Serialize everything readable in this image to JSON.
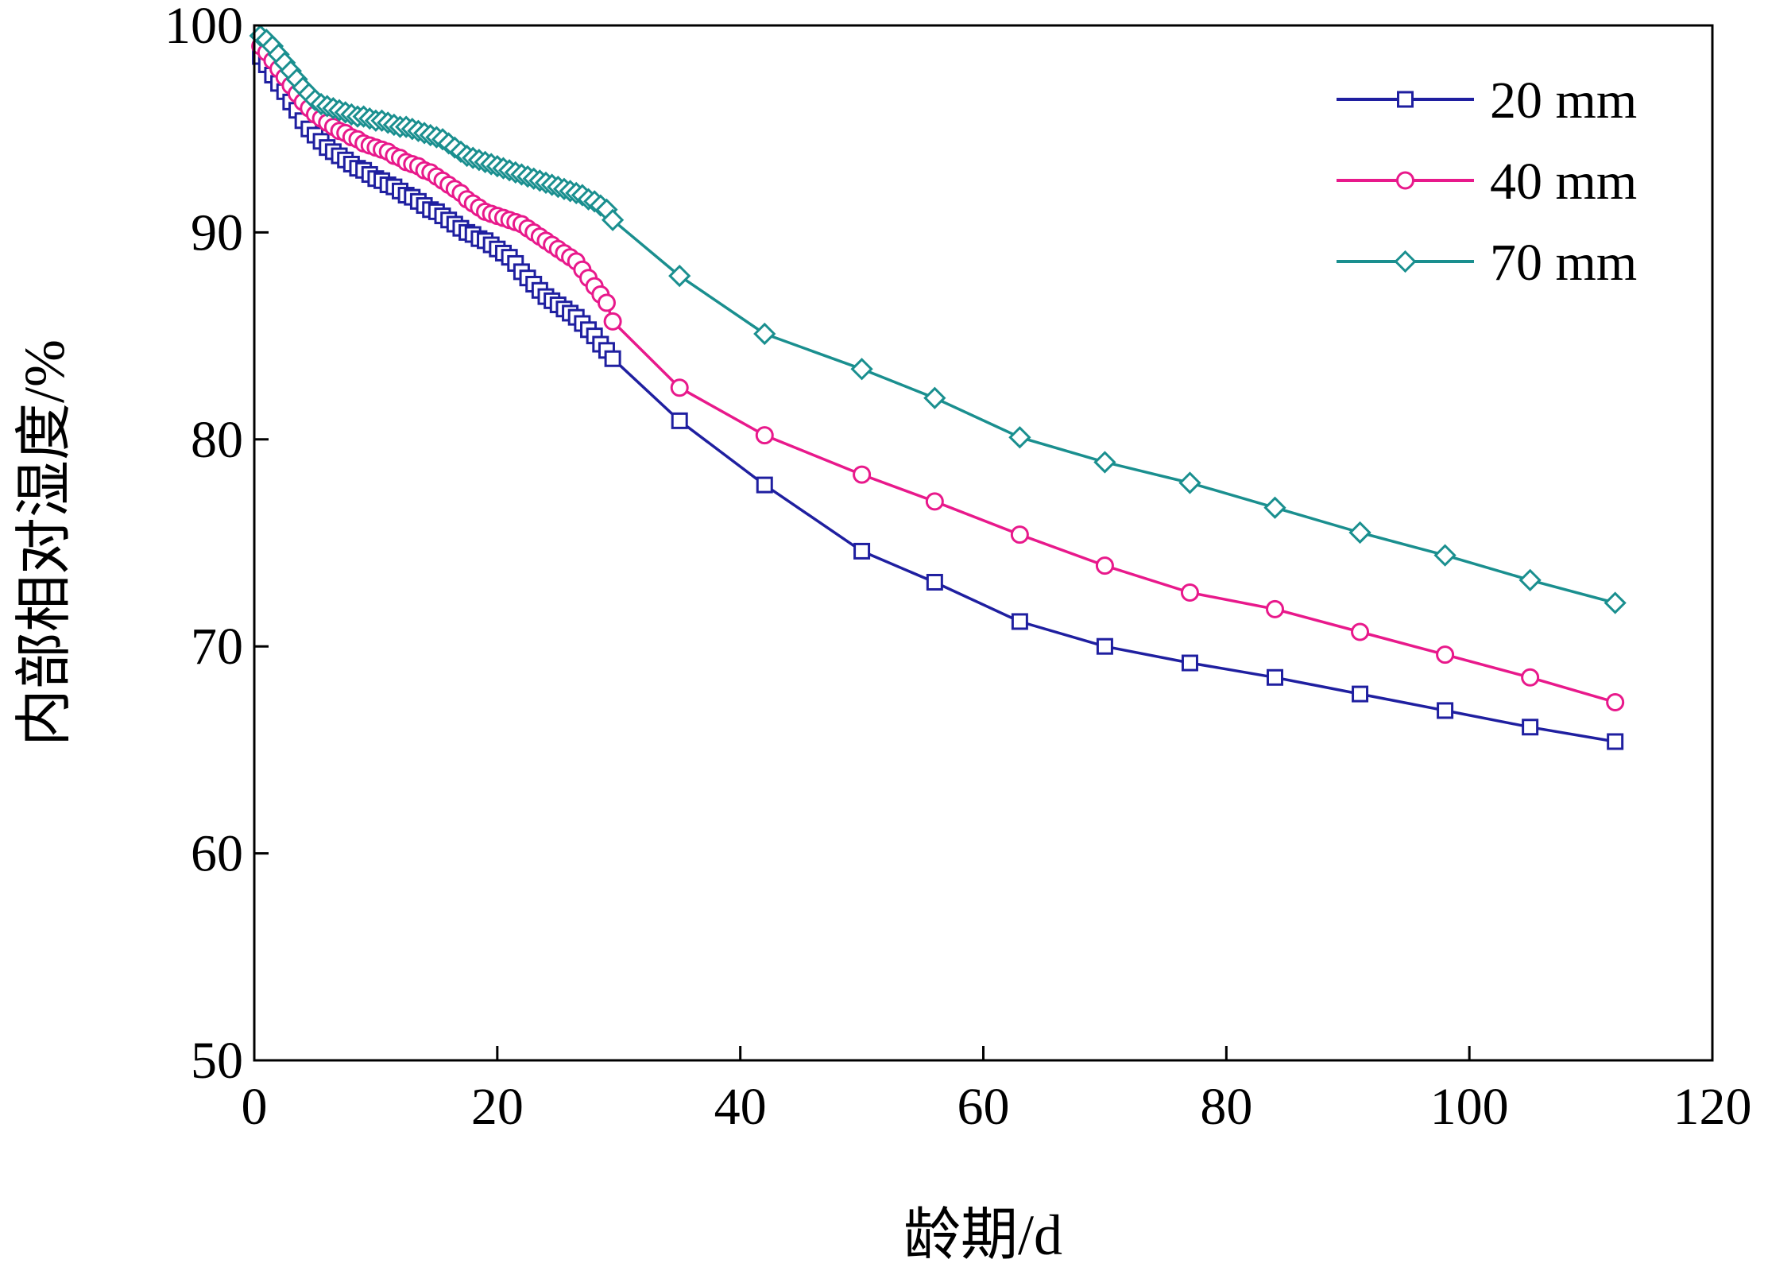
{
  "chart_data": {
    "type": "line",
    "xlabel": "龄期/d",
    "ylabel": "内部相对湿度/%",
    "xlim": [
      0,
      120
    ],
    "ylim": [
      50,
      100
    ],
    "xticks": [
      "0",
      "20",
      "40",
      "60",
      "80",
      "100",
      "120"
    ],
    "yticks": [
      "50",
      "60",
      "70",
      "80",
      "90",
      "100"
    ],
    "grid": false,
    "legend_position": "top-right",
    "series": [
      {
        "name": "20 mm",
        "color": "#1f1fa0",
        "marker": "square",
        "x": [
          0.5,
          1.0,
          1.5,
          2.0,
          2.5,
          3.0,
          3.5,
          4.0,
          4.5,
          5.0,
          5.5,
          6.0,
          6.5,
          7.0,
          7.5,
          8.0,
          8.5,
          9.0,
          9.5,
          10.0,
          10.5,
          11.0,
          11.5,
          12.0,
          12.5,
          13.0,
          13.5,
          14.0,
          14.5,
          15.0,
          15.5,
          16.0,
          16.5,
          17.0,
          17.5,
          18.0,
          18.5,
          19.0,
          19.5,
          20.0,
          20.5,
          21.0,
          21.5,
          22.0,
          22.5,
          23.0,
          23.5,
          24.0,
          24.5,
          25.0,
          25.5,
          26.0,
          26.5,
          27.0,
          27.5,
          28.0,
          28.5,
          29.0,
          29.5,
          35,
          42,
          50,
          56,
          63,
          70,
          77,
          84,
          91,
          98,
          105,
          112
        ],
        "y": [
          98.5,
          98.1,
          97.6,
          97.2,
          96.8,
          96.3,
          95.9,
          95.4,
          95.0,
          94.7,
          94.4,
          94.1,
          93.9,
          93.7,
          93.5,
          93.3,
          93.1,
          93.0,
          92.8,
          92.6,
          92.5,
          92.3,
          92.2,
          92.0,
          91.8,
          91.7,
          91.5,
          91.3,
          91.1,
          91.0,
          90.8,
          90.6,
          90.4,
          90.2,
          90.0,
          89.9,
          89.7,
          89.6,
          89.4,
          89.2,
          89.0,
          88.8,
          88.5,
          88.1,
          87.8,
          87.5,
          87.2,
          86.9,
          86.7,
          86.5,
          86.3,
          86.1,
          85.9,
          85.6,
          85.3,
          85.0,
          84.6,
          84.3,
          83.9,
          80.9,
          77.8,
          74.6,
          73.1,
          71.2,
          70.0,
          69.2,
          68.5,
          67.7,
          66.9,
          66.1,
          65.4
        ]
      },
      {
        "name": "40 mm",
        "color": "#e8198b",
        "marker": "circle",
        "x": [
          0.5,
          1.0,
          1.5,
          2.0,
          2.5,
          3.0,
          3.5,
          4.0,
          4.5,
          5.0,
          5.5,
          6.0,
          6.5,
          7.0,
          7.5,
          8.0,
          8.5,
          9.0,
          9.5,
          10.0,
          10.5,
          11.0,
          11.5,
          12.0,
          12.5,
          13.0,
          13.5,
          14.0,
          14.5,
          15.0,
          15.5,
          16.0,
          16.5,
          17.0,
          17.5,
          18.0,
          18.5,
          19.0,
          19.5,
          20.0,
          20.5,
          21.0,
          21.5,
          22.0,
          22.5,
          23.0,
          23.5,
          24.0,
          24.5,
          25.0,
          25.5,
          26.0,
          26.5,
          27.0,
          27.5,
          28.0,
          28.5,
          29.0,
          29.5,
          35,
          42,
          50,
          56,
          63,
          70,
          77,
          84,
          91,
          98,
          105,
          112
        ],
        "y": [
          99.0,
          98.7,
          98.3,
          97.9,
          97.5,
          97.1,
          96.7,
          96.3,
          96.0,
          95.7,
          95.5,
          95.3,
          95.1,
          94.9,
          94.8,
          94.6,
          94.5,
          94.3,
          94.2,
          94.1,
          94.0,
          93.9,
          93.7,
          93.6,
          93.4,
          93.3,
          93.2,
          93.0,
          92.9,
          92.7,
          92.5,
          92.3,
          92.1,
          91.9,
          91.6,
          91.4,
          91.2,
          91.0,
          90.9,
          90.8,
          90.7,
          90.6,
          90.5,
          90.4,
          90.2,
          90.0,
          89.8,
          89.6,
          89.4,
          89.2,
          89.0,
          88.8,
          88.6,
          88.2,
          87.8,
          87.4,
          87.0,
          86.6,
          85.7,
          82.5,
          80.2,
          78.3,
          77.0,
          75.4,
          73.9,
          72.6,
          71.8,
          70.7,
          69.6,
          68.5,
          67.3
        ]
      },
      {
        "name": "70 mm",
        "color": "#1a8f8f",
        "marker": "diamond",
        "x": [
          0.5,
          1.0,
          1.5,
          2.0,
          2.5,
          3.0,
          3.5,
          4.0,
          4.5,
          5.0,
          5.5,
          6.0,
          6.5,
          7.0,
          7.5,
          8.0,
          8.5,
          9.0,
          9.5,
          10.0,
          10.5,
          11.0,
          11.5,
          12.0,
          12.5,
          13.0,
          13.5,
          14.0,
          14.5,
          15.0,
          15.5,
          16.0,
          16.5,
          17.0,
          17.5,
          18.0,
          18.5,
          19.0,
          19.5,
          20.0,
          20.5,
          21.0,
          21.5,
          22.0,
          22.5,
          23.0,
          23.5,
          24.0,
          24.5,
          25.0,
          25.5,
          26.0,
          26.5,
          27.0,
          27.5,
          28.0,
          28.5,
          29.0,
          29.5,
          35,
          42,
          50,
          56,
          63,
          70,
          77,
          84,
          91,
          98,
          105,
          112
        ],
        "y": [
          99.5,
          99.3,
          99.0,
          98.6,
          98.2,
          97.8,
          97.4,
          97.0,
          96.7,
          96.4,
          96.2,
          96.1,
          96.0,
          95.9,
          95.8,
          95.7,
          95.6,
          95.6,
          95.5,
          95.4,
          95.4,
          95.3,
          95.2,
          95.1,
          95.1,
          95.0,
          94.9,
          94.8,
          94.7,
          94.6,
          94.5,
          94.3,
          94.1,
          93.9,
          93.7,
          93.6,
          93.5,
          93.4,
          93.3,
          93.2,
          93.1,
          93.0,
          92.9,
          92.8,
          92.7,
          92.6,
          92.5,
          92.4,
          92.3,
          92.2,
          92.1,
          92.0,
          91.9,
          91.8,
          91.6,
          91.5,
          91.3,
          91.1,
          90.6,
          87.9,
          85.1,
          83.4,
          82.0,
          80.1,
          78.9,
          77.9,
          76.7,
          75.5,
          74.4,
          73.2,
          72.1
        ]
      }
    ]
  }
}
